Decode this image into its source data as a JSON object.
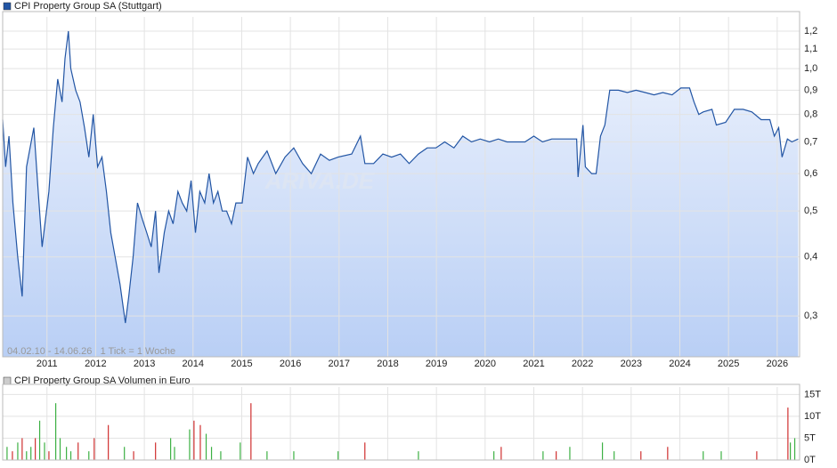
{
  "chart_data": [
    {
      "type": "line",
      "title": "CPI Property Group SA (Stuttgart)",
      "range_note": "04.02.10 - 14.06.26   1 Tick = 1 Woche",
      "watermark": "ARIVA.DE",
      "log_y": true,
      "grid": true,
      "color": "#2255a4",
      "xlim": [
        2010.09,
        2026.46
      ],
      "ylim": [
        0.246,
        1.286
      ],
      "xticks": [
        2011,
        2012,
        2013,
        2014,
        2015,
        2016,
        2017,
        2018,
        2019,
        2020,
        2021,
        2022,
        2023,
        2024,
        2025,
        2026
      ],
      "yticks": [
        {
          "value": 0.3,
          "label": "0,3"
        },
        {
          "value": 0.4,
          "label": "0,4"
        },
        {
          "value": 0.5,
          "label": "0,5"
        },
        {
          "value": 0.6,
          "label": "0,6"
        },
        {
          "value": 0.7,
          "label": "0,7"
        },
        {
          "value": 0.8,
          "label": "0,8"
        },
        {
          "value": 0.9,
          "label": "0,9"
        },
        {
          "value": 1.0,
          "label": "1,0"
        },
        {
          "value": 1.1,
          "label": "1,1"
        },
        {
          "value": 1.2,
          "label": "1,2"
        }
      ],
      "x": [
        2010.09,
        2010.15,
        2010.22,
        2010.3,
        2010.4,
        2010.49,
        2010.58,
        2010.73,
        2010.82,
        2010.9,
        2011.04,
        2011.13,
        2011.22,
        2011.31,
        2011.37,
        2011.44,
        2011.49,
        2011.59,
        2011.68,
        2011.77,
        2011.86,
        2011.95,
        2012.04,
        2012.13,
        2012.22,
        2012.31,
        2012.4,
        2012.5,
        2012.61,
        2012.68,
        2012.77,
        2012.86,
        2012.96,
        2013.05,
        2013.14,
        2013.23,
        2013.3,
        2013.41,
        2013.5,
        2013.59,
        2013.69,
        2013.78,
        2013.87,
        2013.96,
        2014.05,
        2014.14,
        2014.24,
        2014.33,
        2014.42,
        2014.51,
        2014.6,
        2014.69,
        2014.79,
        2014.88,
        2015.01,
        2015.12,
        2015.24,
        2015.34,
        2015.52,
        2015.7,
        2015.89,
        2016.07,
        2016.25,
        2016.43,
        2016.62,
        2016.8,
        2016.98,
        2017.26,
        2017.44,
        2017.53,
        2017.71,
        2017.9,
        2018.08,
        2018.26,
        2018.44,
        2018.63,
        2018.81,
        2018.99,
        2019.17,
        2019.36,
        2019.54,
        2019.72,
        2019.9,
        2020.09,
        2020.27,
        2020.45,
        2020.63,
        2020.82,
        2021.0,
        2021.18,
        2021.37,
        2021.55,
        2021.73,
        2021.88,
        2021.91,
        2022.01,
        2022.06,
        2022.19,
        2022.28,
        2022.37,
        2022.46,
        2022.56,
        2022.74,
        2022.92,
        2023.1,
        2023.29,
        2023.47,
        2023.65,
        2023.84,
        2024.02,
        2024.2,
        2024.29,
        2024.39,
        2024.48,
        2024.66,
        2024.75,
        2024.94,
        2025.12,
        2025.3,
        2025.48,
        2025.67,
        2025.85,
        2025.94,
        2026.03,
        2026.1,
        2026.21,
        2026.3,
        2026.43
      ],
      "values": [
        0.78,
        0.62,
        0.72,
        0.52,
        0.4,
        0.33,
        0.62,
        0.75,
        0.55,
        0.42,
        0.55,
        0.75,
        0.95,
        0.85,
        1.05,
        1.2,
        1.0,
        0.9,
        0.85,
        0.75,
        0.65,
        0.8,
        0.62,
        0.65,
        0.55,
        0.45,
        0.4,
        0.35,
        0.29,
        0.33,
        0.4,
        0.52,
        0.48,
        0.45,
        0.42,
        0.5,
        0.37,
        0.45,
        0.5,
        0.47,
        0.55,
        0.52,
        0.5,
        0.58,
        0.45,
        0.55,
        0.52,
        0.6,
        0.52,
        0.55,
        0.5,
        0.5,
        0.47,
        0.52,
        0.52,
        0.65,
        0.6,
        0.63,
        0.67,
        0.6,
        0.65,
        0.68,
        0.63,
        0.6,
        0.66,
        0.64,
        0.65,
        0.66,
        0.72,
        0.63,
        0.63,
        0.66,
        0.65,
        0.66,
        0.63,
        0.66,
        0.68,
        0.68,
        0.7,
        0.68,
        0.72,
        0.7,
        0.71,
        0.7,
        0.71,
        0.7,
        0.7,
        0.7,
        0.72,
        0.7,
        0.71,
        0.71,
        0.71,
        0.71,
        0.59,
        0.76,
        0.62,
        0.6,
        0.6,
        0.72,
        0.76,
        0.9,
        0.9,
        0.89,
        0.9,
        0.89,
        0.88,
        0.89,
        0.88,
        0.91,
        0.91,
        0.85,
        0.8,
        0.81,
        0.82,
        0.76,
        0.77,
        0.82,
        0.82,
        0.81,
        0.78,
        0.78,
        0.72,
        0.75,
        0.65,
        0.71,
        0.7,
        0.71
      ]
    },
    {
      "type": "bar",
      "title": "CPI Property Group SA Volumen in Euro",
      "grid": true,
      "xlim": [
        2010.09,
        2026.46
      ],
      "ylim": [
        0,
        16700
      ],
      "xticks": [
        2011,
        2012,
        2013,
        2014,
        2015,
        2016,
        2017,
        2018,
        2019,
        2020,
        2021,
        2022,
        2023,
        2024,
        2025,
        2026
      ],
      "yticks": [
        {
          "value": 0,
          "label": "0T"
        },
        {
          "value": 5000,
          "label": "5T"
        },
        {
          "value": 10000,
          "label": "10T"
        },
        {
          "value": 15000,
          "label": "15T"
        }
      ],
      "x": [
        2010.18,
        2010.29,
        2010.4,
        2010.49,
        2010.58,
        2010.67,
        2010.76,
        2010.85,
        2010.95,
        2011.04,
        2011.18,
        2011.27,
        2011.4,
        2011.49,
        2011.64,
        2011.86,
        2011.97,
        2012.26,
        2012.59,
        2012.78,
        2013.23,
        2013.54,
        2013.62,
        2013.93,
        2014.02,
        2014.15,
        2014.27,
        2014.38,
        2014.57,
        2014.97,
        2015.19,
        2015.52,
        2016.07,
        2016.98,
        2017.53,
        2018.63,
        2020.18,
        2020.33,
        2021.19,
        2021.46,
        2021.74,
        2022.41,
        2022.65,
        2023.2,
        2023.75,
        2024.48,
        2024.85,
        2025.58,
        2026.22,
        2026.27,
        2026.36
      ],
      "values": [
        3000,
        2000,
        4000,
        5000,
        2000,
        3000,
        5000,
        9000,
        4000,
        2000,
        13000,
        5000,
        3000,
        2000,
        4000,
        2000,
        5000,
        8000,
        3000,
        2000,
        4000,
        5000,
        3000,
        7000,
        9000,
        8000,
        6000,
        3000,
        2000,
        4000,
        13000,
        2000,
        2000,
        2000,
        4000,
        2000,
        2000,
        3000,
        2000,
        2000,
        3000,
        4000,
        2000,
        2000,
        3000,
        2000,
        2000,
        2000,
        12000,
        4000,
        5000
      ],
      "colors": [
        "#3cb043",
        "#d03030",
        "#3cb043",
        "#d03030",
        "#3cb043",
        "#3cb043",
        "#d03030",
        "#3cb043",
        "#3cb043",
        "#d03030",
        "#3cb043",
        "#3cb043",
        "#3cb043",
        "#3cb043",
        "#d03030",
        "#3cb043",
        "#d03030",
        "#d03030",
        "#3cb043",
        "#d03030",
        "#d03030",
        "#3cb043",
        "#3cb043",
        "#3cb043",
        "#d03030",
        "#d03030",
        "#3cb043",
        "#3cb043",
        "#3cb043",
        "#3cb043",
        "#d03030",
        "#3cb043",
        "#3cb043",
        "#3cb043",
        "#d03030",
        "#3cb043",
        "#3cb043",
        "#d03030",
        "#3cb043",
        "#d03030",
        "#3cb043",
        "#3cb043",
        "#3cb043",
        "#d03030",
        "#d03030",
        "#3cb043",
        "#3cb043",
        "#d03030",
        "#d03030",
        "#3cb043",
        "#3cb043"
      ]
    }
  ]
}
